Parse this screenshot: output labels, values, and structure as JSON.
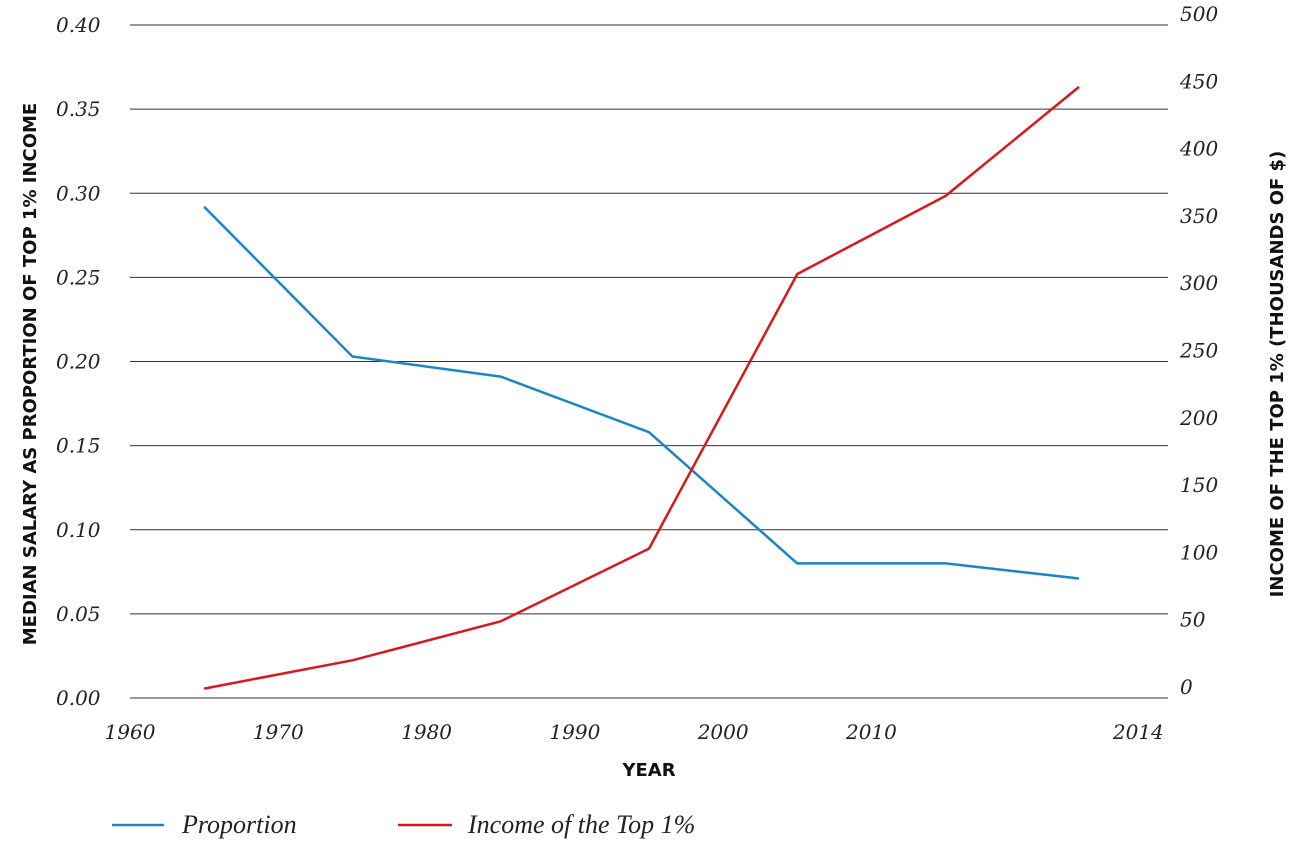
{
  "chart_data": {
    "type": "line",
    "x_ticks": [
      "1960",
      "1970",
      "1980",
      "1990",
      "2000",
      "2010",
      "2014"
    ],
    "left_axis": {
      "label": "MEDIAN SALARY AS PROPORTION OF TOP 1% INCOME",
      "ylim": [
        0,
        0.4
      ],
      "ticks": [
        "0.00",
        "0.05",
        "0.10",
        "0.15",
        "0.20",
        "0.25",
        "0.30",
        "0.35",
        "0.40"
      ]
    },
    "right_axis": {
      "label": "INCOME OF THE TOP 1% (THOUSANDS OF $)",
      "ylim": [
        0,
        500
      ],
      "ticks": [
        "0",
        "50",
        "100",
        "150",
        "200",
        "250",
        "300",
        "350",
        "400",
        "450",
        "500"
      ]
    },
    "xlabel": "YEAR",
    "grid": true,
    "legend_position": "bottom-left",
    "series": [
      {
        "name": "Proportion",
        "axis": "left",
        "color": "#1a86c8",
        "points": [
          [
            1965,
            0.292
          ],
          [
            1975,
            0.203
          ],
          [
            1985,
            0.191
          ],
          [
            1995,
            0.158
          ],
          [
            2005,
            0.08
          ],
          [
            2015,
            0.08
          ],
          [
            2024,
            0.071
          ]
        ]
      },
      {
        "name": "Income of the Top 1%",
        "axis": "right",
        "color": "#d7191c",
        "points": [
          [
            1965,
            7
          ],
          [
            1975,
            28
          ],
          [
            1985,
            57
          ],
          [
            1995,
            111
          ],
          [
            2005,
            315
          ],
          [
            2015,
            373
          ],
          [
            2024,
            454
          ]
        ]
      }
    ]
  }
}
